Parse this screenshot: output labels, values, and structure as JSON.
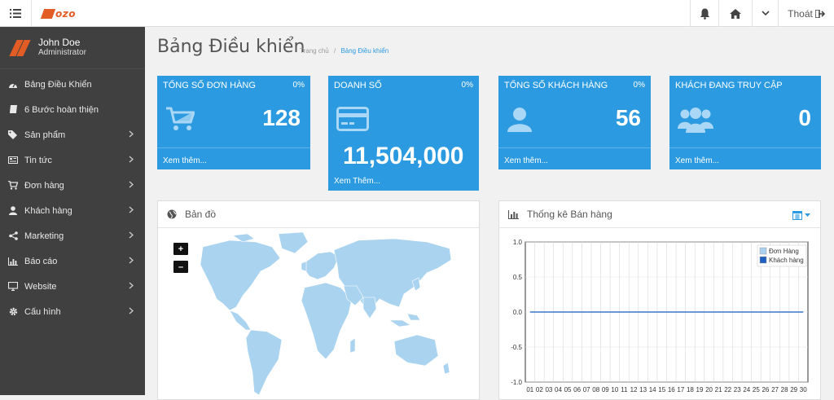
{
  "topbar": {
    "logo_text": "ozo",
    "logout_label": "Thoát"
  },
  "user": {
    "name": "John Doe",
    "role": "Administrator"
  },
  "sidebar": {
    "items": [
      {
        "label": "Bảng Điều Khiển",
        "icon": "dashboard-icon"
      },
      {
        "label": "6 Bước hoàn thiện",
        "icon": "book-icon"
      },
      {
        "label": "Sản phẩm",
        "icon": "tags-icon"
      },
      {
        "label": "Tin tức",
        "icon": "newspaper-icon"
      },
      {
        "label": "Đơn hàng",
        "icon": "cart-icon"
      },
      {
        "label": "Khách hàng",
        "icon": "user-icon"
      },
      {
        "label": "Marketing",
        "icon": "share-icon"
      },
      {
        "label": "Báo cáo",
        "icon": "bar-chart-icon"
      },
      {
        "label": "Website",
        "icon": "desktop-icon"
      },
      {
        "label": "Cấu hình",
        "icon": "gear-icon"
      }
    ]
  },
  "page": {
    "title": "Bảng Điều khiển",
    "breadcrumb_home": "Trang chủ",
    "breadcrumb_sep": "/",
    "breadcrumb_current": "Bảng Điều khiển"
  },
  "stats": [
    {
      "label": "TỔNG SỐ ĐƠN HÀNG",
      "percent": "0%",
      "value": "128",
      "more": "Xem thêm..."
    },
    {
      "label": "DOANH SỐ",
      "percent": "0%",
      "value": "11,504,000",
      "more": "Xem Thêm..."
    },
    {
      "label": "TỔNG SỐ KHÁCH HÀNG",
      "percent": "0%",
      "value": "56",
      "more": "Xem thêm..."
    },
    {
      "label": "KHÁCH ĐANG TRUY CẬP",
      "value": "0",
      "more": "Xem thêm..."
    }
  ],
  "map_panel": {
    "title": "Bản đồ",
    "zoom_in": "+",
    "zoom_out": "–"
  },
  "chart_panel": {
    "title": "Thống kê Bán hàng"
  },
  "colors": {
    "accent": "#2b9ae0",
    "sidebar": "#404040",
    "brand": "#e25c25",
    "map_land": "#aad3f0"
  },
  "chart_data": {
    "type": "line",
    "categories": [
      "01",
      "02",
      "03",
      "04",
      "05",
      "06",
      "07",
      "08",
      "09",
      "10",
      "11",
      "12",
      "13",
      "14",
      "15",
      "16",
      "17",
      "18",
      "19",
      "20",
      "21",
      "22",
      "23",
      "24",
      "25",
      "26",
      "27",
      "28",
      "29",
      "30"
    ],
    "series": [
      {
        "name": "Đơn Hàng",
        "color": "#a9d1ef",
        "values": [
          0,
          0,
          0,
          0,
          0,
          0,
          0,
          0,
          0,
          0,
          0,
          0,
          0,
          0,
          0,
          0,
          0,
          0,
          0,
          0,
          0,
          0,
          0,
          0,
          0,
          0,
          0,
          0,
          0,
          0
        ]
      },
      {
        "name": "Khách hàng",
        "color": "#1f5fbf",
        "values": [
          0,
          0,
          0,
          0,
          0,
          0,
          0,
          0,
          0,
          0,
          0,
          0,
          0,
          0,
          0,
          0,
          0,
          0,
          0,
          0,
          0,
          0,
          0,
          0,
          0,
          0,
          0,
          0,
          0,
          0
        ]
      }
    ],
    "ylim": [
      -1.0,
      1.0
    ],
    "yticks": [
      "1.0",
      "0.5",
      "0.0",
      "-0.5",
      "-1.0"
    ],
    "grid": true,
    "legend_position": "top-right"
  }
}
